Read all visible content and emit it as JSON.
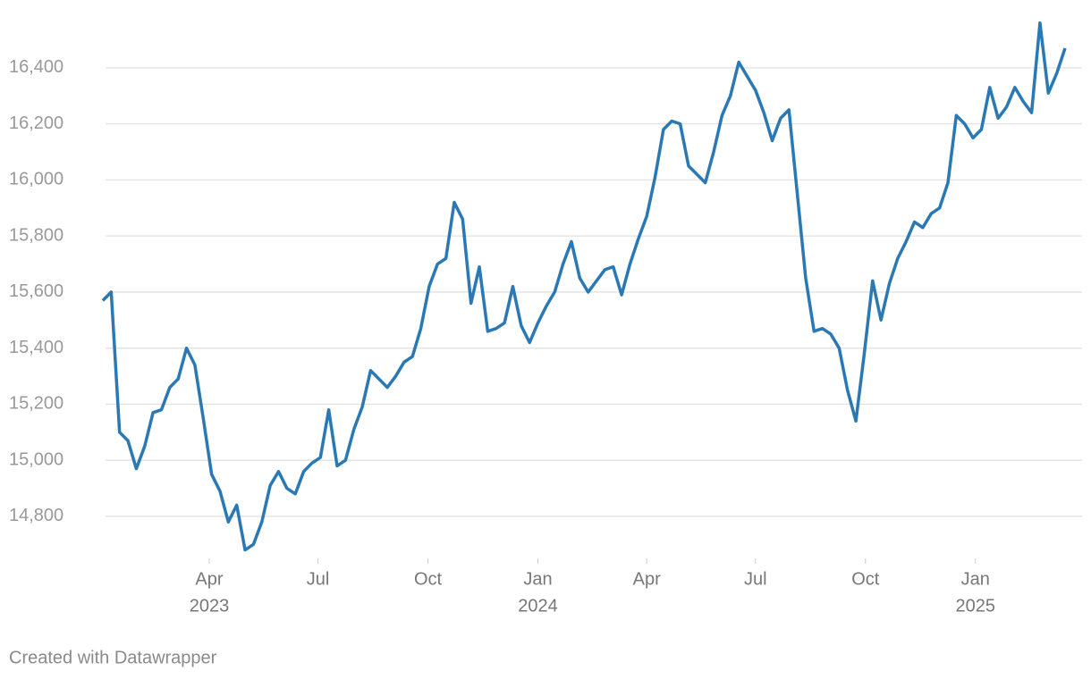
{
  "chart_data": {
    "type": "line",
    "x": [
      "2023-01-02",
      "2023-01-09",
      "2023-01-16",
      "2023-01-23",
      "2023-01-30",
      "2023-02-06",
      "2023-02-13",
      "2023-02-20",
      "2023-02-27",
      "2023-03-06",
      "2023-03-13",
      "2023-03-20",
      "2023-03-27",
      "2023-04-03",
      "2023-04-10",
      "2023-04-17",
      "2023-04-24",
      "2023-05-01",
      "2023-05-08",
      "2023-05-15",
      "2023-05-22",
      "2023-05-29",
      "2023-06-05",
      "2023-06-12",
      "2023-06-19",
      "2023-06-26",
      "2023-07-03",
      "2023-07-10",
      "2023-07-17",
      "2023-07-24",
      "2023-07-31",
      "2023-08-07",
      "2023-08-14",
      "2023-08-21",
      "2023-08-28",
      "2023-09-04",
      "2023-09-11",
      "2023-09-18",
      "2023-09-25",
      "2023-10-02",
      "2023-10-09",
      "2023-10-16",
      "2023-10-23",
      "2023-10-30",
      "2023-11-06",
      "2023-11-13",
      "2023-11-20",
      "2023-11-27",
      "2023-12-04",
      "2023-12-11",
      "2023-12-18",
      "2023-12-25",
      "2024-01-01",
      "2024-01-08",
      "2024-01-15",
      "2024-01-22",
      "2024-01-29",
      "2024-02-05",
      "2024-02-12",
      "2024-02-19",
      "2024-02-26",
      "2024-03-04",
      "2024-03-11",
      "2024-03-18",
      "2024-03-25",
      "2024-04-01",
      "2024-04-08",
      "2024-04-15",
      "2024-04-22",
      "2024-04-29",
      "2024-05-06",
      "2024-05-13",
      "2024-05-20",
      "2024-05-27",
      "2024-06-03",
      "2024-06-10",
      "2024-06-17",
      "2024-06-24",
      "2024-07-01",
      "2024-07-08",
      "2024-07-15",
      "2024-07-22",
      "2024-07-29",
      "2024-08-05",
      "2024-08-12",
      "2024-08-19",
      "2024-08-26",
      "2024-09-02",
      "2024-09-09",
      "2024-09-16",
      "2024-09-23",
      "2024-09-30",
      "2024-10-07",
      "2024-10-14",
      "2024-10-21",
      "2024-10-28",
      "2024-11-04",
      "2024-11-11",
      "2024-11-18",
      "2024-11-25",
      "2024-12-02",
      "2024-12-09",
      "2024-12-16",
      "2024-12-23",
      "2024-12-30",
      "2025-01-06",
      "2025-01-13",
      "2025-01-20",
      "2025-01-27",
      "2025-02-03",
      "2025-02-10",
      "2025-02-17",
      "2025-02-24",
      "2025-03-03",
      "2025-03-10",
      "2025-03-17"
    ],
    "series": [
      {
        "color": "#2a78b4",
        "values": [
          15570,
          15600,
          15100,
          15070,
          14970,
          15050,
          15170,
          15180,
          15260,
          15290,
          15400,
          15340,
          15150,
          14950,
          14890,
          14780,
          14840,
          14680,
          14700,
          14780,
          14910,
          14960,
          14900,
          14880,
          14960,
          14990,
          15010,
          15180,
          14980,
          15000,
          15110,
          15190,
          15320,
          15290,
          15260,
          15300,
          15350,
          15370,
          15470,
          15620,
          15700,
          15720,
          15920,
          15860,
          15560,
          15690,
          15460,
          15470,
          15490,
          15620,
          15480,
          15420,
          15490,
          15550,
          15600,
          15700,
          15780,
          15650,
          15600,
          15640,
          15680,
          15690,
          15590,
          15700,
          15790,
          15870,
          16010,
          16180,
          16210,
          16200,
          16050,
          16020,
          15990,
          16100,
          16230,
          16300,
          16420,
          16370,
          16320,
          16240,
          16140,
          16220,
          16250,
          15950,
          15650,
          15460,
          15470,
          15450,
          15400,
          15250,
          15140,
          15380,
          15640,
          15500,
          15630,
          15720,
          15780,
          15850,
          15830,
          15880,
          15900,
          15990,
          16230,
          16200,
          16150,
          16180,
          16330,
          16220,
          16260,
          16330,
          16280,
          16240,
          16560,
          16310,
          16380,
          16470
        ]
      }
    ],
    "xlim": [
      "2023-01-02",
      "2025-03-17"
    ],
    "xticks": [
      {
        "value": "2023-04-01",
        "label": "Apr",
        "year": "2023"
      },
      {
        "value": "2023-07-01",
        "label": "Jul"
      },
      {
        "value": "2023-10-01",
        "label": "Oct"
      },
      {
        "value": "2024-01-01",
        "label": "Jan",
        "year": "2024"
      },
      {
        "value": "2024-04-01",
        "label": "Apr"
      },
      {
        "value": "2024-07-01",
        "label": "Jul"
      },
      {
        "value": "2024-10-01",
        "label": "Oct"
      },
      {
        "value": "2025-01-01",
        "label": "Jan",
        "year": "2025"
      }
    ],
    "ylim": [
      14650,
      16610
    ],
    "yticks": [
      {
        "value": 14800,
        "label": "14,800"
      },
      {
        "value": 15000,
        "label": "15,000"
      },
      {
        "value": 15200,
        "label": "15,200"
      },
      {
        "value": 15400,
        "label": "15,400"
      },
      {
        "value": 15600,
        "label": "15,600"
      },
      {
        "value": 15800,
        "label": "15,800"
      },
      {
        "value": 16000,
        "label": "16,000"
      },
      {
        "value": 16200,
        "label": "16,200"
      },
      {
        "value": 16400,
        "label": "16,400"
      }
    ],
    "grid": true,
    "footer": "Created with Datawrapper"
  }
}
